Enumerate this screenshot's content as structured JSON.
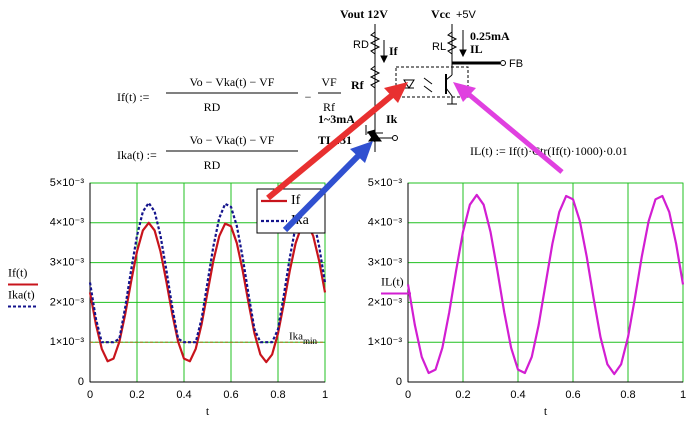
{
  "formulas": [
    {
      "lhs": "If(t) :=",
      "num": "Vo − Vka(t) − VF",
      "den": "RD",
      "minus": "−",
      "num2": "VF",
      "den2": "Rf"
    },
    {
      "lhs": "Ika(t) :=",
      "num": "Vo − Vka(t) − VF",
      "den": "RD"
    },
    {
      "text": "IL(t) := If(t)·Ctr(If(t)·1000)·0.01"
    }
  ],
  "circuit": {
    "vout": "Vout 12V",
    "vcc": "Vcc",
    "plus5": "+5V",
    "rd": "RD",
    "rl": "RL",
    "current_l": "0.25mA",
    "il": "IL",
    "fb": "FB",
    "if": "If",
    "rf": "Rf",
    "range": "1~3mA",
    "ik": "Ik",
    "tl431": "TL431"
  },
  "chart_data": [
    {
      "type": "line",
      "xlabel": "t",
      "ylabels": [
        "If(t)",
        "Ika(t)"
      ],
      "x": [
        0,
        0.025,
        0.05,
        0.075,
        0.1,
        0.125,
        0.15,
        0.175,
        0.2,
        0.225,
        0.25,
        0.275,
        0.3,
        0.325,
        0.35,
        0.375,
        0.4,
        0.425,
        0.45,
        0.475,
        0.5,
        0.525,
        0.55,
        0.575,
        0.6,
        0.625,
        0.65,
        0.675,
        0.7,
        0.725,
        0.75,
        0.775,
        0.8,
        0.825,
        0.85,
        0.875,
        0.9,
        0.925,
        0.95,
        0.975,
        1
      ],
      "series": [
        {
          "name": "If",
          "color": "#c8141c",
          "dashed": false,
          "values": [
            0.00225,
            0.001455,
            0.000834,
            0.000521,
            0.000586,
            0.001013,
            0.001709,
            0.002523,
            0.003279,
            0.003809,
            0.004,
            0.003809,
            0.003279,
            0.002523,
            0.001709,
            0.001013,
            0.000586,
            0.000521,
            0.000834,
            0.001455,
            0.00225,
            0.003045,
            0.003666,
            0.003979,
            0.003914,
            0.003487,
            0.002791,
            0.001977,
            0.001221,
            0.000691,
            0.0005,
            0.000691,
            0.001221,
            0.001977,
            0.002791,
            0.003487,
            0.003914,
            0.003979,
            0.003666,
            0.003045,
            0.00225
          ]
        },
        {
          "name": "Ika",
          "color": "#14148c",
          "dashed": true,
          "values": [
            0.0025,
            0.001592,
            0.001,
            0.001,
            0.001,
            0.001086,
            0.001882,
            0.002812,
            0.003676,
            0.004282,
            0.0045,
            0.004282,
            0.003676,
            0.002812,
            0.001882,
            0.001086,
            0.001,
            0.001,
            0.001,
            0.001592,
            0.0025,
            0.003408,
            0.004118,
            0.004476,
            0.004402,
            0.003914,
            0.003118,
            0.002188,
            0.001324,
            0.001,
            0.001,
            0.001,
            0.001324,
            0.002188,
            0.003118,
            0.003914,
            0.004402,
            0.004476,
            0.004118,
            0.003408,
            0.0025
          ]
        }
      ],
      "ref_line": {
        "value": 0.001,
        "label": "Ika",
        "sub": "min",
        "color": "#b0701c"
      },
      "xlim": [
        0,
        1
      ],
      "xticks": [
        0,
        0.2,
        0.4,
        0.6,
        0.8,
        1
      ],
      "ylim": [
        0,
        0.005
      ],
      "yticks": [
        0,
        {
          "value": 0.001,
          "label": "1×10⁻³"
        },
        {
          "value": 0.002,
          "label": "2×10⁻³"
        },
        {
          "value": 0.003,
          "label": "3×10⁻³"
        },
        {
          "value": 0.004,
          "label": "4×10⁻³"
        },
        {
          "value": 0.005,
          "label": "5×10⁻³"
        }
      ],
      "grid": true,
      "grid_color": "#20c020",
      "legend": "upper right"
    },
    {
      "type": "line",
      "xlabel": "t",
      "ylabels": [
        "IL(t)"
      ],
      "x": [
        0,
        0.025,
        0.05,
        0.075,
        0.1,
        0.125,
        0.15,
        0.175,
        0.2,
        0.225,
        0.25,
        0.275,
        0.3,
        0.325,
        0.35,
        0.375,
        0.4,
        0.425,
        0.45,
        0.475,
        0.5,
        0.525,
        0.55,
        0.575,
        0.6,
        0.625,
        0.65,
        0.675,
        0.7,
        0.725,
        0.75,
        0.775,
        0.8,
        0.825,
        0.85,
        0.875,
        0.9,
        0.925,
        0.95,
        0.975,
        1
      ],
      "series": [
        {
          "color": "#d21ed2",
          "dashed": false,
          "values": [
            0.00245,
            0.001428,
            0.00063,
            0.000227,
            0.00031,
            0.000859,
            0.001755,
            0.002801,
            0.003773,
            0.004455,
            0.0047,
            0.004455,
            0.003773,
            0.002801,
            0.001755,
            0.000859,
            0.00031,
            0.000227,
            0.00063,
            0.001428,
            0.00245,
            0.003472,
            0.00427,
            0.004673,
            0.00459,
            0.004041,
            0.003145,
            0.002099,
            0.001127,
            0.000445,
            0.0002,
            0.000445,
            0.001127,
            0.002099,
            0.003145,
            0.004041,
            0.00459,
            0.004673,
            0.00427,
            0.003472,
            0.00245
          ]
        }
      ],
      "xlim": [
        0,
        1
      ],
      "xticks": [
        0,
        0.2,
        0.4,
        0.6,
        0.8,
        1
      ],
      "ylim": [
        0,
        0.005
      ],
      "yticks": [
        0,
        {
          "value": 0.001,
          "label": "1×10⁻³"
        },
        {
          "value": 0.002,
          "label": "2×10⁻³"
        },
        {
          "value": 0.003,
          "label": "3×10⁻³"
        },
        {
          "value": 0.004,
          "label": "4×10⁻³"
        },
        {
          "value": 0.005,
          "label": "5×10⁻³"
        }
      ],
      "grid": true,
      "grid_color": "#20c020"
    }
  ]
}
